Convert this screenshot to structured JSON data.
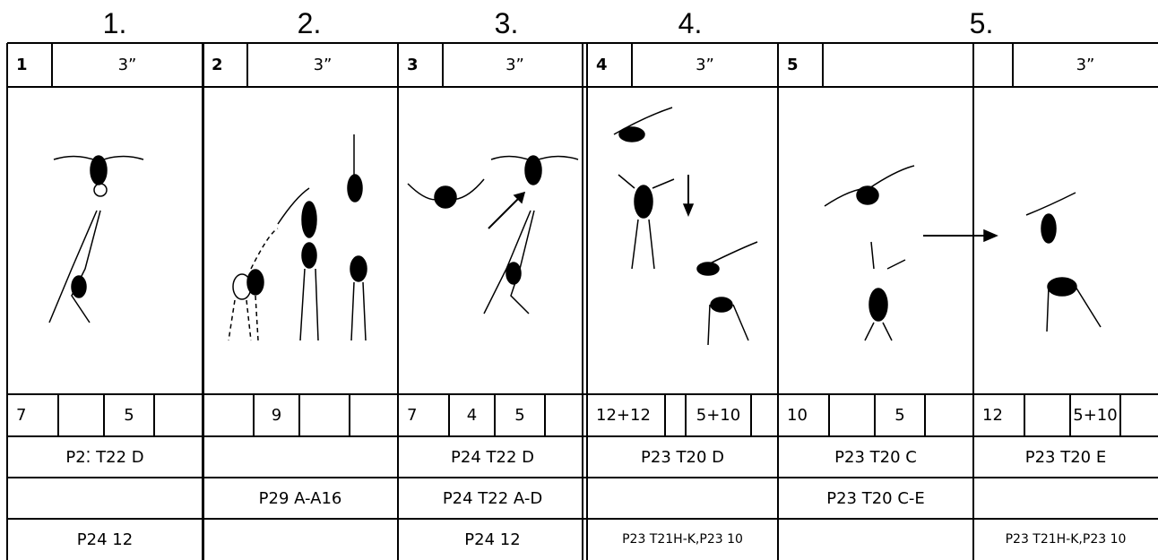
{
  "headings": [
    "1.",
    "2.",
    "3.",
    "4.",
    "5."
  ],
  "table": {
    "header": [
      {
        "number": "1",
        "time": "3”"
      },
      {
        "number": "2",
        "time": "3”"
      },
      {
        "number": "3",
        "time": "3”"
      },
      {
        "number": "4",
        "time": "3”"
      },
      {
        "number": "5",
        "time": null
      },
      {
        "number": null,
        "time": "3”"
      }
    ],
    "numbers": [
      [
        "7",
        null,
        "5",
        null
      ],
      [
        null,
        "9",
        null,
        null
      ],
      [
        "7",
        "4",
        "5",
        null
      ],
      [
        "12+12",
        null,
        "5+10",
        null
      ],
      [
        "10",
        null,
        "5",
        null
      ],
      [
        "12",
        null,
        "5+10",
        null
      ]
    ],
    "rows": [
      [
        "P2⁚ T22 D",
        null,
        "P24 T22 D",
        "P23 T20 D",
        "P23 T20 C",
        "P23 T20 E"
      ],
      [
        null,
        "P29 A-A16",
        "P24 T22 A-D",
        null,
        "P23 T20 C-E",
        null
      ],
      [
        "P24 12",
        null,
        "P24 12",
        "P23 T21H-K,P23 10",
        null,
        "P23 T21H-K,P23 10"
      ]
    ]
  }
}
